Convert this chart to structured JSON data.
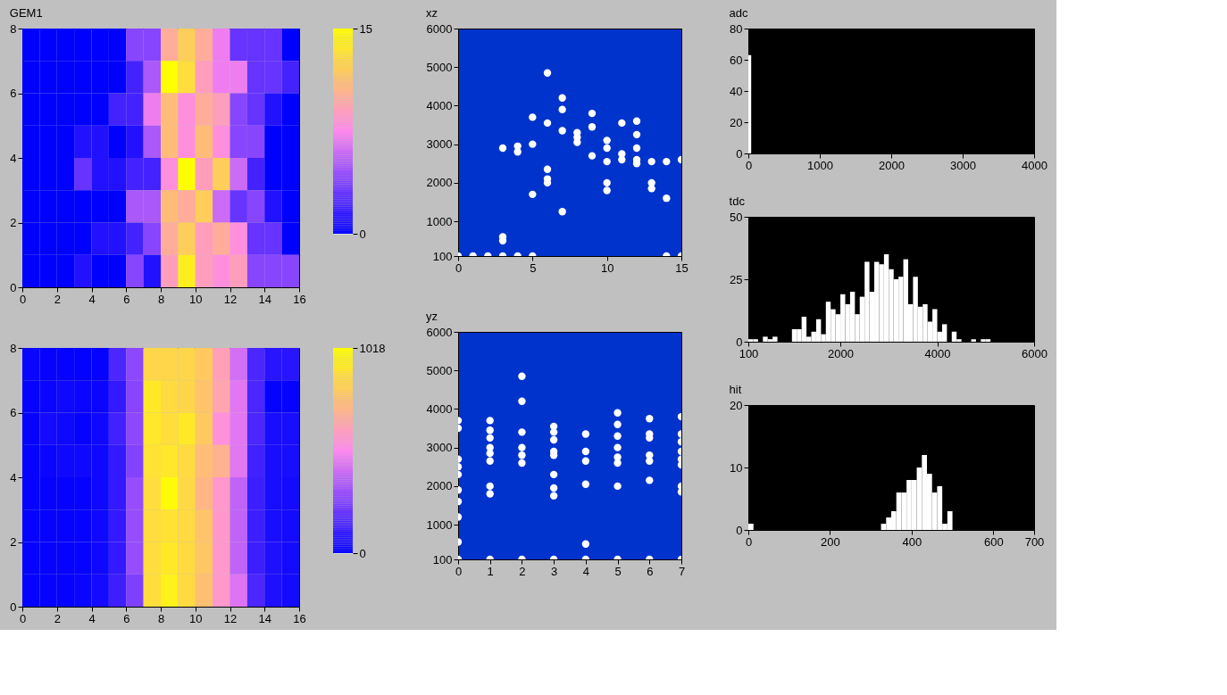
{
  "chart_data": [
    {
      "type": "heatmap",
      "title": "GEM1",
      "xlim": [
        0,
        16
      ],
      "xticks": [
        0,
        2,
        4,
        6,
        8,
        10,
        12,
        14,
        16
      ],
      "ylim": [
        0,
        8
      ],
      "yticks": [
        0,
        2,
        4,
        6,
        8
      ],
      "clim": [
        0,
        15
      ],
      "cticks": [
        0,
        15
      ],
      "grid": false,
      "cells": [
        [
          0,
          0,
          0,
          0,
          0,
          0,
          4,
          4,
          10,
          12,
          10,
          7,
          3,
          3,
          3,
          0
        ],
        [
          0,
          0,
          0,
          0,
          0,
          0,
          2,
          5,
          15,
          13,
          9,
          7,
          7,
          3,
          3,
          2
        ],
        [
          0,
          0,
          0,
          0,
          0,
          2,
          2,
          7,
          11,
          8,
          10,
          9,
          4,
          3,
          1,
          0
        ],
        [
          0,
          0,
          0,
          1,
          1,
          0,
          1,
          5,
          11,
          8,
          11,
          8,
          4,
          4,
          0,
          0
        ],
        [
          0,
          0,
          0,
          3,
          1,
          1,
          2,
          2,
          8,
          15,
          9,
          12,
          6,
          2,
          0,
          0
        ],
        [
          0,
          0,
          0,
          0,
          0,
          0,
          5,
          5,
          11,
          10,
          12,
          6,
          3,
          4,
          1,
          0
        ],
        [
          0,
          0,
          0,
          0,
          1,
          1,
          2,
          4,
          10,
          12,
          9,
          10,
          8,
          3,
          3,
          0
        ],
        [
          0,
          0,
          0,
          1,
          0,
          0,
          4,
          1,
          9,
          14,
          9,
          8,
          9,
          4,
          4,
          4
        ]
      ]
    },
    {
      "type": "heatmap",
      "xlim": [
        0,
        16
      ],
      "xticks": [
        0,
        2,
        4,
        6,
        8,
        10,
        12,
        14,
        16
      ],
      "ylim": [
        0,
        8
      ],
      "yticks": [
        0,
        2,
        4,
        6,
        8
      ],
      "clim": [
        0,
        1018
      ],
      "cticks": [
        0,
        1018
      ],
      "grid": false,
      "cells": [
        [
          20,
          10,
          10,
          5,
          10,
          150,
          280,
          850,
          850,
          850,
          800,
          620,
          420,
          150,
          80,
          80
        ],
        [
          10,
          20,
          30,
          20,
          20,
          100,
          270,
          930,
          870,
          850,
          780,
          640,
          450,
          150,
          10,
          10
        ],
        [
          10,
          40,
          30,
          10,
          30,
          130,
          280,
          920,
          880,
          930,
          800,
          550,
          450,
          150,
          50,
          50
        ],
        [
          10,
          20,
          30,
          30,
          30,
          100,
          260,
          900,
          920,
          870,
          750,
          700,
          450,
          130,
          50,
          50
        ],
        [
          10,
          10,
          10,
          10,
          30,
          100,
          300,
          880,
          1000,
          860,
          720,
          580,
          380,
          120,
          50,
          40
        ],
        [
          10,
          10,
          10,
          10,
          30,
          100,
          300,
          880,
          900,
          870,
          780,
          580,
          380,
          120,
          50,
          40
        ],
        [
          10,
          10,
          10,
          10,
          30,
          100,
          300,
          880,
          930,
          870,
          790,
          580,
          380,
          120,
          60,
          40
        ],
        [
          10,
          10,
          10,
          20,
          40,
          120,
          250,
          880,
          960,
          870,
          760,
          580,
          440,
          150,
          60,
          40
        ]
      ]
    },
    {
      "type": "scatter",
      "title": "xz",
      "xlim": [
        0,
        15
      ],
      "xticks": [
        0,
        5,
        10,
        15
      ],
      "ylim": [
        100,
        6000
      ],
      "yticks": [
        100,
        1000,
        2000,
        3000,
        4000,
        5000,
        6000
      ],
      "marker": "circle",
      "grid": false,
      "series": [
        {
          "color": "#ffffff",
          "x": [
            0,
            1,
            2,
            3,
            3,
            3,
            3,
            4,
            4,
            4,
            5,
            5,
            5,
            5,
            6,
            6,
            6,
            6,
            6,
            7,
            7,
            7,
            7,
            8,
            8,
            8,
            9,
            9,
            9,
            10,
            10,
            10,
            10,
            10,
            11,
            11,
            11,
            12,
            12,
            12,
            12,
            12,
            13,
            13,
            13,
            14,
            14,
            14,
            15,
            15
          ],
          "values": [
            100,
            100,
            100,
            100,
            500,
            600,
            2900,
            100,
            2950,
            2800,
            100,
            3700,
            3000,
            1700,
            4850,
            3550,
            2350,
            2100,
            2000,
            4200,
            3900,
            3350,
            1250,
            3300,
            3180,
            3050,
            3800,
            3450,
            2700,
            3100,
            2900,
            2550,
            2000,
            1800,
            3550,
            2750,
            2600,
            3600,
            3250,
            2900,
            2600,
            2500,
            2550,
            2000,
            1850,
            100,
            2550,
            1600,
            100,
            2600
          ]
        }
      ]
    },
    {
      "type": "scatter",
      "title": "yz",
      "xlim": [
        0,
        7
      ],
      "xticks": [
        0,
        1,
        2,
        3,
        4,
        5,
        6,
        7
      ],
      "ylim": [
        100,
        6000
      ],
      "yticks": [
        100,
        1000,
        2000,
        3000,
        4000,
        5000,
        6000
      ],
      "marker": "circle",
      "grid": false,
      "series": [
        {
          "color": "#ffffff",
          "x": [
            0,
            0,
            0,
            0,
            0,
            0,
            0,
            0,
            0,
            0,
            1,
            1,
            1,
            1,
            1,
            1,
            1,
            1,
            1,
            2,
            2,
            2,
            2,
            2,
            2,
            2,
            3,
            3,
            3,
            3,
            3,
            3,
            3,
            3,
            3,
            4,
            4,
            4,
            4,
            4,
            4,
            5,
            5,
            5,
            5,
            5,
            5,
            5,
            5,
            6,
            6,
            6,
            6,
            6,
            6,
            6,
            7,
            7,
            7,
            7,
            7,
            7,
            7,
            7,
            7
          ],
          "values": [
            3700,
            3500,
            2700,
            2500,
            2300,
            1900,
            1600,
            1200,
            550,
            100,
            3700,
            3450,
            3250,
            3000,
            2850,
            2650,
            2000,
            1800,
            100,
            4850,
            4200,
            3400,
            3000,
            2800,
            2600,
            100,
            3550,
            3400,
            3200,
            2900,
            2800,
            2300,
            1950,
            1750,
            100,
            3350,
            2900,
            2650,
            2050,
            500,
            100,
            3900,
            3600,
            3300,
            3000,
            2750,
            2600,
            2000,
            100,
            3750,
            3350,
            3250,
            2800,
            2650,
            2150,
            100,
            3800,
            3350,
            3150,
            2900,
            2700,
            2550,
            2000,
            1850,
            100
          ]
        }
      ]
    },
    {
      "type": "histogram",
      "title": "adc",
      "xlim": [
        0,
        4000
      ],
      "xticks": [
        0,
        1000,
        2000,
        3000,
        4000
      ],
      "ylim": [
        0,
        80
      ],
      "yticks": [
        0,
        20,
        40,
        60,
        80
      ],
      "grid": false,
      "color": "#ffffff",
      "bins": [
        0,
        40
      ],
      "values": [
        63
      ]
    },
    {
      "type": "histogram",
      "title": "tdc",
      "xlim": [
        100,
        6000
      ],
      "xticks": [
        100,
        2000,
        4000,
        6000
      ],
      "ylim": [
        0,
        50
      ],
      "yticks": [
        0,
        25,
        50
      ],
      "grid": false,
      "color": "#ffffff",
      "bins": [
        100,
        200,
        300,
        400,
        500,
        600,
        700,
        800,
        900,
        1000,
        1100,
        1200,
        1300,
        1400,
        1500,
        1600,
        1700,
        1800,
        1900,
        2000,
        2100,
        2200,
        2300,
        2400,
        2500,
        2600,
        2700,
        2800,
        2900,
        3000,
        3100,
        3200,
        3300,
        3400,
        3500,
        3600,
        3700,
        3800,
        3900,
        4000,
        4100,
        4200,
        4300,
        4400,
        4500,
        4600,
        4700,
        4800,
        4900,
        5000,
        5100
      ],
      "values": [
        1,
        1,
        0,
        2,
        1,
        2,
        0,
        0,
        0,
        5,
        5,
        10,
        2,
        4,
        9,
        3,
        16,
        13,
        11,
        19,
        15,
        20,
        11,
        18,
        32,
        20,
        32,
        31,
        35,
        29,
        25,
        26,
        33,
        15,
        26,
        14,
        15,
        8,
        13,
        4,
        7,
        0,
        4,
        1,
        0,
        0,
        1,
        0,
        1,
        1
      ]
    },
    {
      "type": "histogram",
      "title": "hit",
      "xlim": [
        0,
        700
      ],
      "xticks": [
        0,
        200,
        400,
        600,
        700
      ],
      "ylim": [
        0,
        20
      ],
      "yticks": [
        0,
        10,
        20
      ],
      "grid": false,
      "color": "#ffffff",
      "bins": [
        0,
        12.5,
        25,
        37.5,
        50,
        62.5,
        75,
        87.5,
        100,
        112.5,
        125,
        137.5,
        150,
        162.5,
        175,
        187.5,
        200,
        212.5,
        225,
        237.5,
        250,
        262.5,
        275,
        287.5,
        300,
        312.5,
        325,
        337.5,
        350,
        362.5,
        375,
        387.5,
        400,
        412.5,
        425,
        437.5,
        450,
        462.5,
        475,
        487.5,
        500
      ],
      "values": [
        1,
        0,
        0,
        0,
        0,
        0,
        0,
        0,
        0,
        0,
        0,
        0,
        0,
        0,
        0,
        0,
        0,
        0,
        0,
        0,
        0,
        0,
        0,
        0,
        0,
        0,
        1,
        2,
        3,
        6,
        6,
        8,
        8,
        10,
        12,
        9,
        6,
        7,
        1,
        3
      ]
    }
  ]
}
